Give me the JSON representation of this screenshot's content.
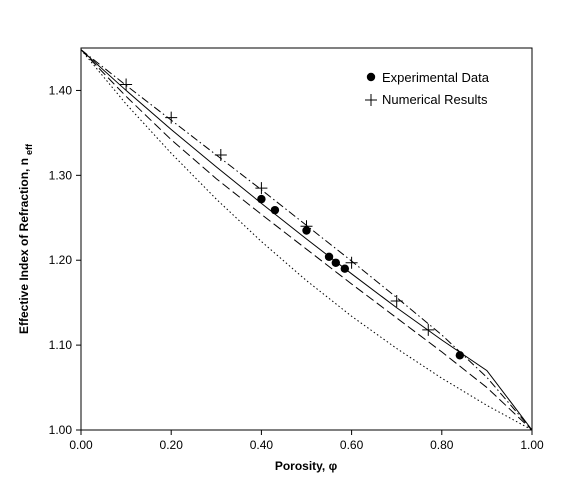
{
  "chart_data": {
    "type": "scatter",
    "xlabel": "Porosity, φ",
    "ylabel_main": "Effective Index of Refraction, n",
    "ylabel_sub": "eff",
    "xlim": [
      0.0,
      1.0
    ],
    "ylim": [
      1.0,
      1.45
    ],
    "xticks": [
      0.0,
      0.2,
      0.4,
      0.6,
      0.8,
      1.0
    ],
    "xtick_labels": [
      "0.00",
      "0.20",
      "0.40",
      "0.60",
      "0.80",
      "1.00"
    ],
    "yticks": [
      1.0,
      1.1,
      1.2,
      1.3,
      1.4
    ],
    "ytick_labels": [
      "1.00",
      "1.10",
      "1.20",
      "1.30",
      "1.40"
    ],
    "grid": false,
    "legend": {
      "position": "top-right",
      "entries": [
        "Experimental Data",
        "Numerical Results"
      ]
    },
    "series": [
      {
        "name": "Experimental Data",
        "marker": "circle",
        "x": [
          0.4,
          0.43,
          0.5,
          0.55,
          0.565,
          0.585,
          0.84
        ],
        "y": [
          1.272,
          1.259,
          1.235,
          1.204,
          1.197,
          1.19,
          1.088
        ]
      },
      {
        "name": "Numerical Results",
        "marker": "plus",
        "x": [
          0.1,
          0.2,
          0.31,
          0.4,
          0.5,
          0.6,
          0.7,
          0.77
        ],
        "y": [
          1.407,
          1.368,
          1.324,
          1.285,
          1.24,
          1.197,
          1.152,
          1.118
        ]
      },
      {
        "style": "solid",
        "x": [
          0.0,
          0.1,
          0.2,
          0.3,
          0.4,
          0.5,
          0.6,
          0.7,
          0.8,
          0.9,
          1.0
        ],
        "y": [
          1.448,
          1.4,
          1.354,
          1.31,
          1.267,
          1.225,
          1.184,
          1.144,
          1.106,
          1.07,
          1.0
        ]
      },
      {
        "style": "dashed",
        "x": [
          0.0,
          0.1,
          0.2,
          0.3,
          0.4,
          0.5,
          0.6,
          0.7,
          0.8,
          0.9,
          1.0
        ],
        "y": [
          1.448,
          1.393,
          1.342,
          1.296,
          1.254,
          1.213,
          1.172,
          1.132,
          1.092,
          1.05,
          1.0
        ]
      },
      {
        "style": "dotted",
        "x": [
          0.0,
          0.1,
          0.2,
          0.3,
          0.4,
          0.5,
          0.6,
          0.7,
          0.8,
          0.9,
          1.0
        ],
        "y": [
          1.448,
          1.384,
          1.326,
          1.272,
          1.222,
          1.176,
          1.134,
          1.096,
          1.061,
          1.029,
          1.0
        ]
      },
      {
        "style": "dash-dot",
        "x": [
          0.0,
          0.1,
          0.2,
          0.3,
          0.4,
          0.5,
          0.6,
          0.7,
          0.8,
          0.9,
          1.0
        ],
        "y": [
          1.448,
          1.406,
          1.365,
          1.324,
          1.283,
          1.241,
          1.199,
          1.156,
          1.112,
          1.062,
          1.0
        ]
      }
    ]
  }
}
